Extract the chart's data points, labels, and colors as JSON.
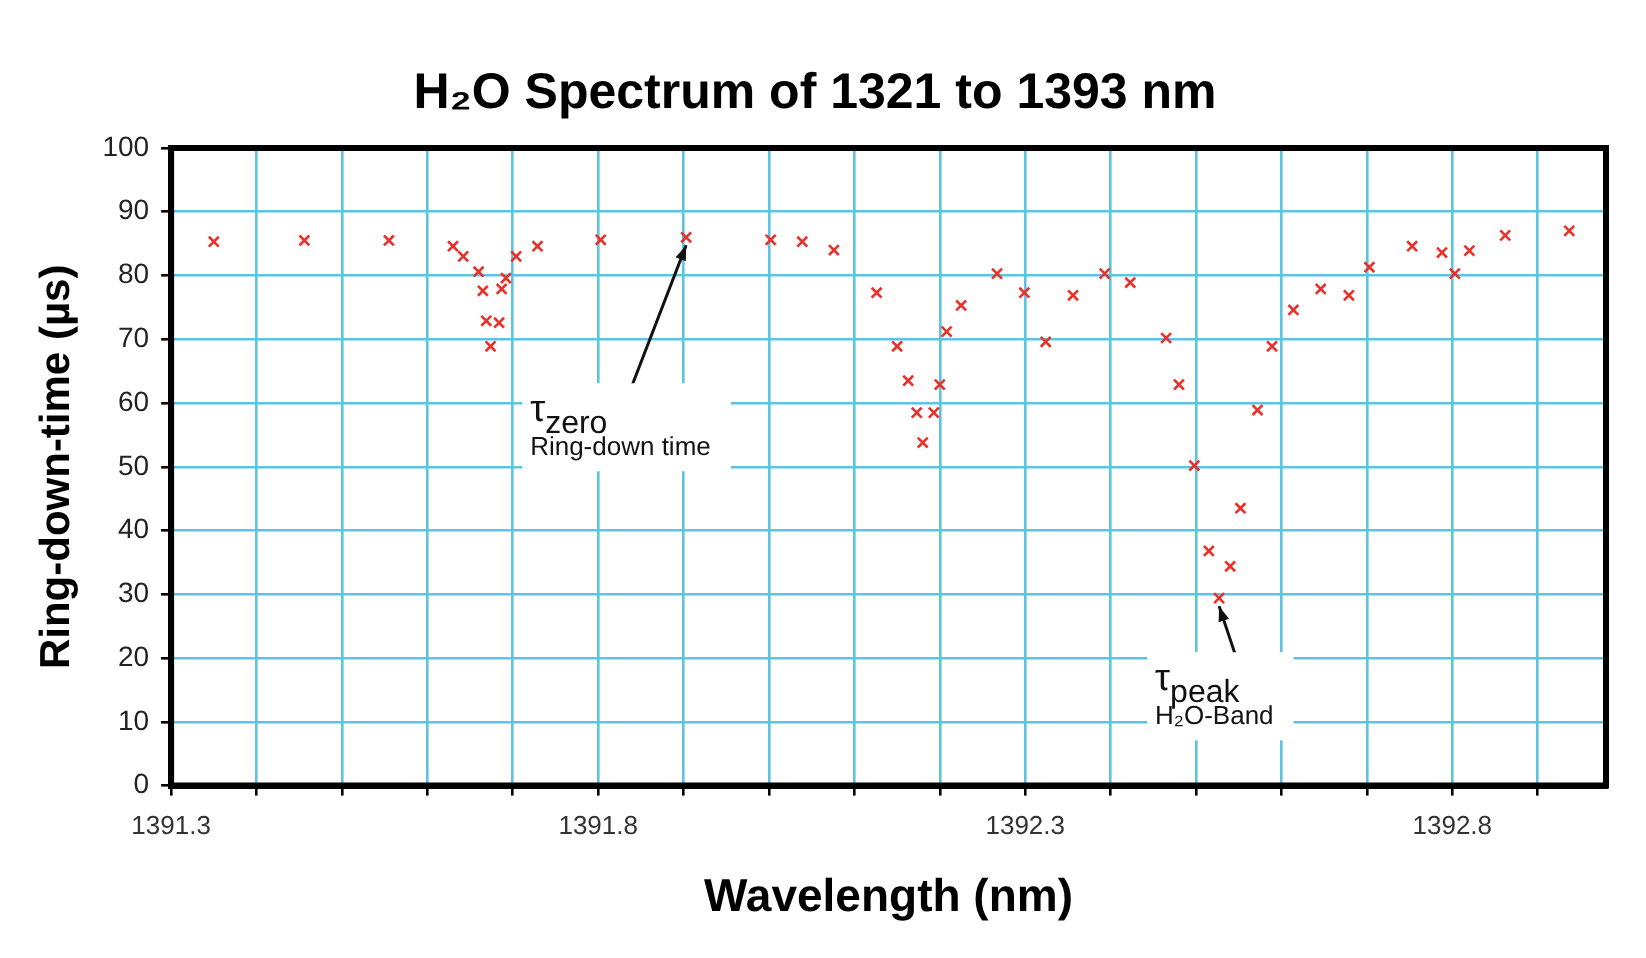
{
  "chart_data": {
    "type": "scatter",
    "title": "H₂O Spectrum of 1321 to 1393 nm",
    "xlabel": "Wavelength (nm)",
    "ylabel": "Ring-down-time (µs)",
    "x": [
      1391.35,
      1391.456,
      1391.555,
      1391.63,
      1391.642,
      1391.66,
      1391.665,
      1391.669,
      1391.674,
      1391.684,
      1391.687,
      1391.692,
      1391.704,
      1391.729,
      1391.803,
      1391.903,
      1392.002,
      1392.039,
      1392.076,
      1392.126,
      1392.15,
      1392.163,
      1392.173,
      1392.18,
      1392.193,
      1392.2,
      1392.208,
      1392.225,
      1392.267,
      1392.299,
      1392.324,
      1392.356,
      1392.393,
      1392.423,
      1392.465,
      1392.48,
      1392.498,
      1392.515,
      1392.527,
      1392.54,
      1392.552,
      1392.572,
      1392.589,
      1392.614,
      1392.646,
      1392.679,
      1392.703,
      1392.753,
      1392.788,
      1392.803,
      1392.82,
      1392.862,
      1392.937
    ],
    "series": [
      {
        "color": "#e8312a",
        "values": [
          85.3,
          85.5,
          85.5,
          84.6,
          83,
          80.6,
          77.6,
          72.9,
          68.9,
          72.6,
          77.9,
          79.6,
          83,
          84.6,
          85.6,
          86,
          85.6,
          85.3,
          84,
          77.3,
          68.9,
          63.5,
          58.5,
          53.8,
          58.5,
          62.9,
          71.2,
          75.3,
          80.3,
          77.3,
          69.6,
          76.9,
          80.3,
          78.9,
          70.2,
          62.9,
          50.2,
          36.8,
          29.4,
          34.4,
          43.5,
          58.9,
          68.9,
          74.6,
          77.9,
          76.9,
          81.3,
          84.6,
          83.6,
          80.3,
          83.9,
          86.3,
          87
        ]
      }
    ],
    "marker": "cross",
    "grid": true,
    "legend": false,
    "xlim": [
      1391.3,
      1392.98
    ],
    "xticks": [
      1391.3,
      {
        "value": 1391.4,
        "label": null
      },
      {
        "value": 1391.5,
        "label": null
      },
      {
        "value": 1391.6,
        "label": null
      },
      {
        "value": 1391.7,
        "label": null
      },
      1391.8,
      {
        "value": 1391.9,
        "label": null
      },
      {
        "value": 1392.0,
        "label": null
      },
      {
        "value": 1392.1,
        "label": null
      },
      {
        "value": 1392.2,
        "label": null
      },
      1392.3,
      {
        "value": 1392.4,
        "label": null
      },
      {
        "value": 1392.5,
        "label": null
      },
      {
        "value": 1392.6,
        "label": null
      },
      {
        "value": 1392.7,
        "label": null
      },
      1392.8,
      {
        "value": 1392.9,
        "label": null
      }
    ],
    "ylim": [
      0,
      100
    ],
    "yticks": [
      0,
      10,
      20,
      30,
      40,
      50,
      60,
      70,
      80,
      90,
      100
    ],
    "annotations": [
      {
        "text": "τ$_{zero}$\nRing-down time",
        "x": 1391.903,
        "y": 86
      },
      {
        "text": "τ$_{peak}$\nH₂O-Band",
        "x": 1392.527,
        "y": 29.4
      }
    ]
  }
}
